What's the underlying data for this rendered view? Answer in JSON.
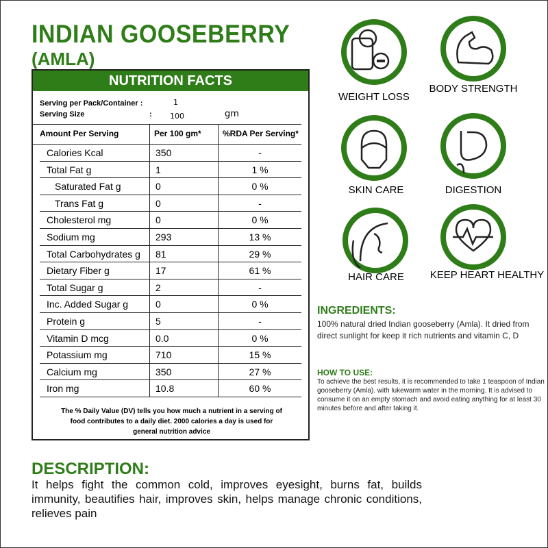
{
  "header": {
    "title": "INDIAN GOOSEBERRY",
    "subtitle": "(AMLA)"
  },
  "nutrition": {
    "title": "NUTRITION FACTS",
    "serving_pack_label": "Serving per Pack/Container :",
    "serving_pack_value": "1",
    "serving_size_label": "Serving Size",
    "serving_size_sep": ":",
    "serving_size_value": "100",
    "serving_size_unit": "gm",
    "columns": [
      "Amount Per Serving",
      "Per 100 gm*",
      "%RDA Per Serving*"
    ],
    "rows": [
      [
        "Calories Kcal",
        "350",
        "-"
      ],
      [
        "Total Fat g",
        "1",
        "1 %"
      ],
      [
        "Saturated Fat g",
        "0",
        "0 %"
      ],
      [
        "Trans Fat g",
        "0",
        "-"
      ],
      [
        "Cholesterol mg",
        "0",
        "0 %"
      ],
      [
        "Sodium mg",
        "293",
        "13 %"
      ],
      [
        "Total Carbohydrates g",
        "81",
        "29 %"
      ],
      [
        "Dietary Fiber g",
        "17",
        "61 %"
      ],
      [
        "Total Sugar g",
        "2",
        "-"
      ],
      [
        "Inc. Added Sugar g",
        "0",
        "0 %"
      ],
      [
        "Protein g",
        "5",
        "-"
      ],
      [
        "Vitamin D mcg",
        "0.0",
        "0 %"
      ],
      [
        "Potassium mg",
        "710",
        "15 %"
      ],
      [
        "Calcium mg",
        "350",
        "27 %"
      ],
      [
        "Iron mg",
        "10.8",
        "60 %"
      ]
    ],
    "footnote": "The % Daily Value (DV) tells you how much a nutrient in a serving of food contributes to a daily diet. 2000 calories a day is used for general nutrition advice"
  },
  "benefits": [
    "WEIGHT LOSS",
    "BODY STRENGTH",
    "SKIN CARE",
    "DIGESTION",
    "HAIR CARE",
    "KEEP HEART HEALTHY"
  ],
  "ingredients": {
    "title": "INGREDIENTS:",
    "text": "100% natural dried Indian gooseberry (Amla). It dried from direct sunlight for keep it rich nutrients and vitamin C, D"
  },
  "how_to_use": {
    "title": "HOW TO USE:",
    "text": "To achieve the best results, it is recommended to take 1 teaspoon of Indian gooseberry (Amla). with lukewarm water in the morning. It is advised to consume it on an empty stomach and avoid eating anything for at least 30 minutes before and after taking it."
  },
  "description": {
    "title": "DESCRIPTION:",
    "text": "It helps fight the common cold, improves eyesight, burns fat, builds immunity, beautifies hair, improves skin, helps manage chronic conditions, relieves pain"
  }
}
